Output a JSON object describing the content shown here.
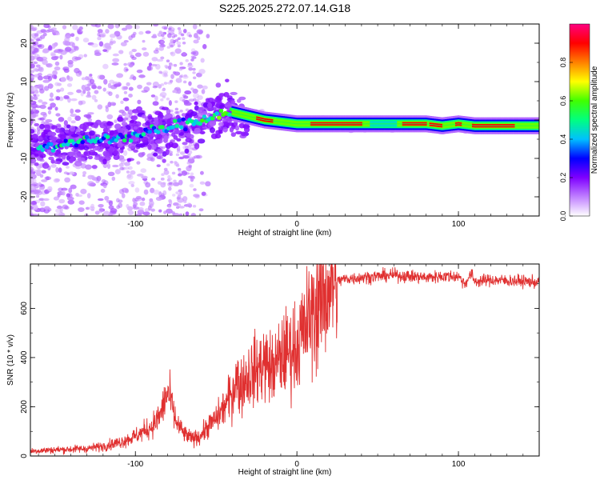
{
  "title": "S225.2025.272.07.14.G18",
  "colorbar": {
    "label": "Normalized spectral amplitude",
    "ticks": [
      "0.0",
      "0.2",
      "0.4",
      "0.6",
      "0.8"
    ],
    "tick_values": [
      0.0,
      0.2,
      0.4,
      0.6,
      0.8
    ],
    "range": [
      0,
      1
    ],
    "stops": [
      "#ffffff",
      "#c080ff",
      "#7f00ff",
      "#0000ff",
      "#00c0ff",
      "#00ff80",
      "#40ff00",
      "#ffff00",
      "#ff8000",
      "#ff0000",
      "#ff0080"
    ]
  },
  "chart_data": [
    {
      "type": "heatmap",
      "name": "spectrogram",
      "title": "S225.2025.272.07.14.G18",
      "xlabel": "Height of straight line (km)",
      "ylabel": "Frequency (Hz)",
      "xlim": [
        -165,
        150
      ],
      "ylim": [
        -25,
        25
      ],
      "xticks": [
        -100,
        0,
        100
      ],
      "xtick_labels": [
        "-100",
        "0",
        "100"
      ],
      "yticks": [
        -20,
        -10,
        0,
        10,
        20
      ],
      "ytick_labels": [
        "-20",
        "-10",
        "0",
        "10",
        "20"
      ],
      "ridge": {
        "x": [
          -160,
          -140,
          -120,
          -100,
          -80,
          -60,
          -45,
          -40,
          -30,
          -20,
          -10,
          0,
          20,
          40,
          60,
          80,
          90,
          100,
          110,
          130,
          150
        ],
        "frequency": [
          -7,
          -6,
          -5,
          -4,
          -2,
          0,
          2,
          2,
          1,
          0,
          -0.5,
          -1,
          -1,
          -1,
          -1,
          -1,
          -1.5,
          -1,
          -1.5,
          -1.5,
          -1.5
        ]
      }
    },
    {
      "type": "line",
      "name": "snr",
      "xlabel": "Height of straight line (km)",
      "ylabel": "SNR (10 * v/v)",
      "xlim": [
        -165,
        150
      ],
      "ylim": [
        0,
        780
      ],
      "xticks": [
        -100,
        0,
        100
      ],
      "xtick_labels": [
        "-100",
        "0",
        "100"
      ],
      "yticks": [
        0,
        200,
        400,
        600
      ],
      "ytick_labels": [
        "0",
        "200",
        "400",
        "600"
      ],
      "color": "#e03030",
      "series": [
        {
          "name": "SNR",
          "x": [
            -165,
            -150,
            -130,
            -120,
            -110,
            -100,
            -90,
            -85,
            -80,
            -78,
            -75,
            -70,
            -65,
            -60,
            -55,
            -50,
            -45,
            -40,
            -38,
            -35,
            -30,
            -25,
            -20,
            -15,
            -10,
            -5,
            0,
            5,
            10,
            15,
            20,
            25,
            30,
            40,
            50,
            60,
            70,
            80,
            90,
            100,
            104,
            108,
            110,
            120,
            130,
            140,
            150
          ],
          "y": [
            20,
            25,
            30,
            40,
            55,
            80,
            120,
            160,
            260,
            220,
            140,
            90,
            70,
            80,
            120,
            150,
            200,
            250,
            320,
            280,
            330,
            350,
            380,
            350,
            400,
            430,
            450,
            520,
            580,
            640,
            690,
            710,
            720,
            725,
            730,
            735,
            730,
            725,
            730,
            730,
            700,
            740,
            710,
            715,
            712,
            710,
            705
          ]
        }
      ]
    }
  ]
}
